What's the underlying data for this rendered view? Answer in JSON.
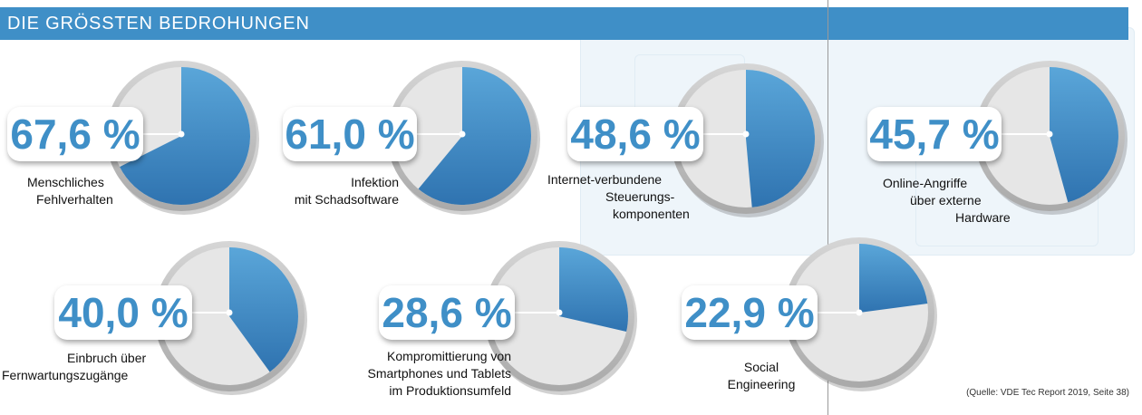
{
  "header": {
    "title": "DIE GRÖSSTEN BEDROHUNGEN"
  },
  "source": "(Quelle: VDE Tec Report 2019, Seite 38)",
  "colors": {
    "accent": "#3f8fc7",
    "pie_fill": "#3d86c2",
    "pie_background": "#e6e6e6",
    "pie_ring": "#c2c2c2"
  },
  "chart_data": {
    "type": "pie",
    "title": "DIE GRÖSSTEN BEDROHUNGEN",
    "items": [
      {
        "category": "Menschliches Fehlverhalten",
        "value": 67.6,
        "display": "67,6 %",
        "label_lines": [
          "Menschliches",
          "Fehlverhalten"
        ]
      },
      {
        "category": "Infektion mit Schadsoftware",
        "value": 61.0,
        "display": "61,0 %",
        "label_lines": [
          "Infektion",
          "mit Schadsoftware"
        ]
      },
      {
        "category": "Internet-verbundene Steuerungskomponenten",
        "value": 48.6,
        "display": "48,6 %",
        "label_lines": [
          "Internet-verbundene",
          "Steuerungs-",
          "komponenten"
        ]
      },
      {
        "category": "Online-Angriffe über externe Hardware",
        "value": 45.7,
        "display": "45,7 %",
        "label_lines": [
          "Online-Angriffe",
          "über externe",
          "Hardware"
        ]
      },
      {
        "category": "Einbruch über Fernwartungszugänge",
        "value": 40.0,
        "display": "40,0 %",
        "label_lines": [
          "Einbruch über",
          "Fernwartungszugänge"
        ]
      },
      {
        "category": "Kompromittierung von Smartphones und Tablets im Produktionsumfeld",
        "value": 28.6,
        "display": "28,6 %",
        "label_lines": [
          "Kompromittierung von",
          "Smartphones und Tablets",
          "im Produktionsumfeld"
        ]
      },
      {
        "category": "Social Engineering",
        "value": 22.9,
        "display": "22,9 %",
        "label_lines": [
          "Social",
          "Engineering"
        ]
      }
    ]
  }
}
